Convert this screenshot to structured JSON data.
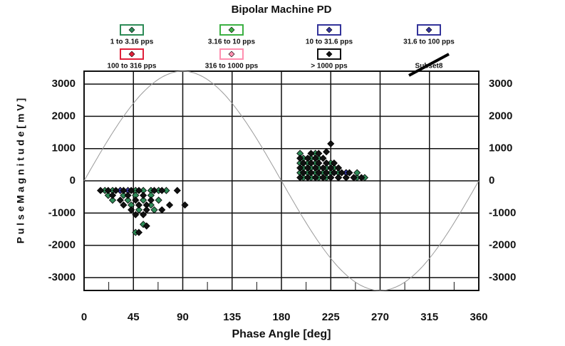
{
  "chart_data": {
    "type": "scatter",
    "title": "Bipolar Machine PD",
    "x_label": "Phase Angle [deg]",
    "y_label": "P u l s e   M a g n i t u d e   [ m V ]",
    "xlim": [
      0,
      360
    ],
    "xticks": [
      0,
      45,
      90,
      135,
      180,
      225,
      270,
      315,
      360
    ],
    "ylim": [
      -3400,
      3400
    ],
    "yticks": [
      -3000,
      -2000,
      -1000,
      0,
      1000,
      2000,
      3000
    ],
    "grid": true,
    "reference_sine": {
      "amplitude": 3400,
      "color": "#9a9a9a"
    },
    "series": [
      {
        "name": "1 to 3.16 pps",
        "color": "#2e8b57",
        "legend_style": "marker",
        "x": [
          19,
          26,
          33,
          47,
          54,
          61,
          68,
          75,
          22,
          36,
          47,
          61,
          26,
          40,
          54,
          68,
          43,
          61,
          50,
          64,
          54,
          47,
          200,
          207,
          214,
          221,
          232,
          239,
          246,
          249,
          256,
          197,
          204,
          211,
          218,
          225,
          232,
          239,
          249,
          200,
          207,
          214,
          221,
          228,
          197,
          204,
          211,
          225,
          200,
          207,
          214,
          197,
          211
        ],
        "y": [
          -300,
          -300,
          -300,
          -300,
          -300,
          -300,
          -300,
          -300,
          -450,
          -450,
          -450,
          -450,
          -600,
          -600,
          -600,
          -600,
          -750,
          -750,
          -900,
          -900,
          -1350,
          -1600,
          100,
          100,
          100,
          100,
          100,
          100,
          100,
          100,
          100,
          250,
          250,
          250,
          250,
          250,
          250,
          250,
          250,
          400,
          400,
          400,
          400,
          400,
          550,
          550,
          550,
          550,
          700,
          700,
          700,
          850,
          850
        ]
      },
      {
        "name": "3.16 to 10 pps",
        "color": "#3cb043",
        "legend_style": "marker",
        "x": [],
        "y": []
      },
      {
        "name": "10 to 31.6 pps",
        "color": "#33339a",
        "legend_style": "marker",
        "x": [
          33,
          40,
          218,
          225,
          232,
          239
        ],
        "y": [
          -300,
          -300,
          100,
          100,
          100,
          250
        ]
      },
      {
        "name": "31.6 to 100 pps",
        "color": "#33339a",
        "legend_style": "marker",
        "x": [],
        "y": []
      },
      {
        "name": "100 to 316 pps",
        "color": "#e0203a",
        "legend_style": "marker",
        "x": [],
        "y": []
      },
      {
        "name": "316 to 1000 pps",
        "color": "#ff8fb0",
        "legend_style": "marker",
        "x": [],
        "y": []
      },
      {
        "name": "> 1000 pps",
        "color": "#111111",
        "legend_style": "marker",
        "x": [
          15,
          22,
          29,
          36,
          43,
          50,
          64,
          71,
          85,
          26,
          40,
          54,
          33,
          47,
          61,
          36,
          50,
          57,
          78,
          92,
          43,
          57,
          71,
          47,
          54,
          57,
          50,
          197,
          204,
          211,
          218,
          225,
          232,
          239,
          246,
          253,
          200,
          207,
          214,
          221,
          228,
          235,
          242,
          197,
          204,
          211,
          218,
          225,
          232,
          200,
          207,
          214,
          221,
          228,
          197,
          204,
          211,
          218,
          207,
          214,
          221,
          225
        ],
        "y": [
          -300,
          -300,
          -300,
          -300,
          -300,
          -300,
          -300,
          -300,
          -300,
          -450,
          -450,
          -450,
          -600,
          -600,
          -600,
          -750,
          -750,
          -750,
          -750,
          -750,
          -900,
          -900,
          -900,
          -1050,
          -1050,
          -1400,
          -1600,
          100,
          100,
          100,
          100,
          100,
          100,
          100,
          100,
          100,
          250,
          250,
          250,
          250,
          250,
          250,
          250,
          400,
          400,
          400,
          400,
          400,
          400,
          550,
          550,
          550,
          550,
          550,
          700,
          700,
          700,
          700,
          850,
          850,
          900,
          1150
        ]
      },
      {
        "name": "Subset8",
        "color": "#000000",
        "legend_style": "line",
        "x": [],
        "y": []
      }
    ]
  }
}
